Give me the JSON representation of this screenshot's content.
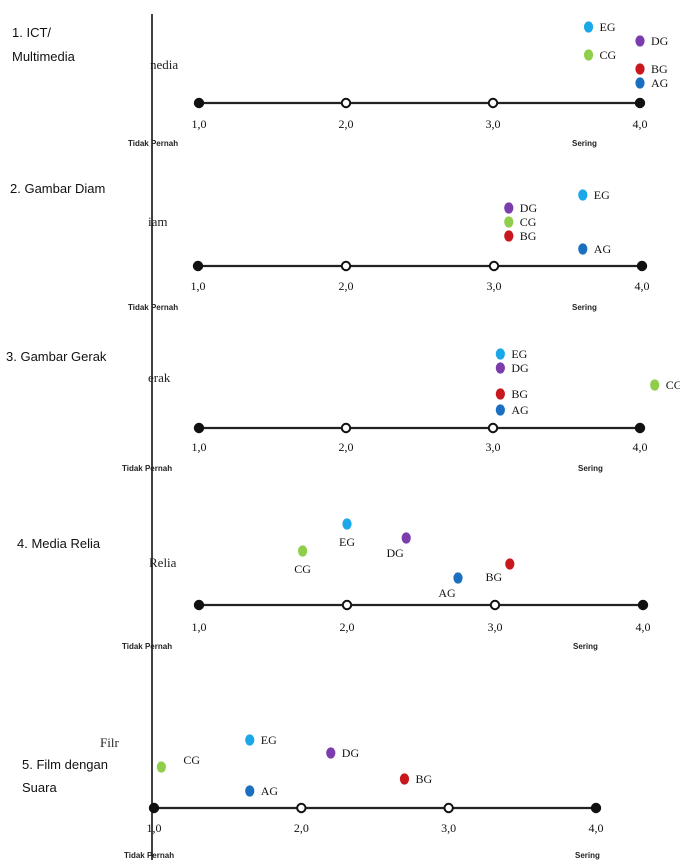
{
  "colors": {
    "EG": "#1ba8e8",
    "DG": "#7a3dab",
    "CG": "#8fce4a",
    "BG": "#c8171d",
    "AG": "#1a6fc0",
    "axis": "#222222"
  },
  "chart_data": [
    {
      "type": "scatter",
      "title": "1. ICT/ Multimedia",
      "title_lines": [
        "1. ICT/",
        "Multimedia"
      ],
      "residual_label": "nedia",
      "xlim": [
        1,
        4
      ],
      "x_ticks": [
        "1,0",
        "2,0",
        "3,0",
        "4,0"
      ],
      "left_label": "Tidak Pernah",
      "right_label": "Sering",
      "points": [
        {
          "name": "EG",
          "x": 3.65,
          "label_side": "right"
        },
        {
          "name": "DG",
          "x": 4.0,
          "label_side": "right"
        },
        {
          "name": "CG",
          "x": 3.65,
          "label_side": "right"
        },
        {
          "name": "BG",
          "x": 4.0,
          "label_side": "right"
        },
        {
          "name": "AG",
          "x": 4.0,
          "label_side": "right"
        }
      ]
    },
    {
      "type": "scatter",
      "title": "2. Gambar Diam",
      "title_lines": [
        "2. Gambar Diam"
      ],
      "residual_label": "iam",
      "xlim": [
        1,
        4
      ],
      "x_ticks": [
        "1,0",
        "2,0",
        "3,0",
        "4,0"
      ],
      "left_label": "Tidak Pernah",
      "right_label": "Sering",
      "points": [
        {
          "name": "EG",
          "x": 3.6,
          "label_side": "right"
        },
        {
          "name": "DG",
          "x": 3.1,
          "label_side": "right"
        },
        {
          "name": "CG",
          "x": 3.1,
          "label_side": "right"
        },
        {
          "name": "BG",
          "x": 3.1,
          "label_side": "right"
        },
        {
          "name": "AG",
          "x": 3.6,
          "label_side": "right"
        }
      ]
    },
    {
      "type": "scatter",
      "title": "3. Gambar Gerak",
      "title_lines": [
        "3. Gambar Gerak"
      ],
      "residual_label": "erak",
      "xlim": [
        1,
        4
      ],
      "x_ticks": [
        "1,0",
        "2,0",
        "3,0",
        "4,0"
      ],
      "left_label": "Tidak Pernah",
      "right_label": "Sering",
      "points": [
        {
          "name": "EG",
          "x": 3.05,
          "label_side": "right"
        },
        {
          "name": "DG",
          "x": 3.05,
          "label_side": "right"
        },
        {
          "name": "CG",
          "x": 4.1,
          "label_side": "right"
        },
        {
          "name": "BG",
          "x": 3.05,
          "label_side": "right"
        },
        {
          "name": "AG",
          "x": 3.05,
          "label_side": "right"
        }
      ]
    },
    {
      "type": "scatter",
      "title": "4. Media Relia",
      "title_lines": [
        "4. Media Relia"
      ],
      "residual_label": "Relia",
      "xlim": [
        1,
        4
      ],
      "x_ticks": [
        "1,0",
        "2,0",
        "3,0",
        "4,0"
      ],
      "left_label": "Tidak Pernah",
      "right_label": "Sering",
      "points": [
        {
          "name": "EG",
          "x": 2.0,
          "label_side": "below"
        },
        {
          "name": "DG",
          "x": 2.4,
          "label_side": "below-left"
        },
        {
          "name": "CG",
          "x": 1.7,
          "label_side": "below"
        },
        {
          "name": "BG",
          "x": 3.1,
          "label_side": "left"
        },
        {
          "name": "AG",
          "x": 2.75,
          "label_side": "below-left"
        }
      ]
    },
    {
      "type": "scatter",
      "title": "5. Film dengan Suara",
      "title_lines": [
        "5. Film dengan",
        "Suara"
      ],
      "residual_label": "Filr",
      "xlim": [
        1,
        4
      ],
      "x_ticks": [
        "1,0",
        "2,0",
        "3,0",
        "4,0"
      ],
      "left_label": "Tidak Pernah",
      "right_label": "Sering",
      "points": [
        {
          "name": "EG",
          "x": 1.65,
          "label_side": "right"
        },
        {
          "name": "DG",
          "x": 2.2,
          "label_side": "right"
        },
        {
          "name": "CG",
          "x": 1.05,
          "label_side": "right-far"
        },
        {
          "name": "BG",
          "x": 2.7,
          "label_side": "right"
        },
        {
          "name": "AG",
          "x": 1.65,
          "label_side": "right"
        }
      ]
    }
  ]
}
